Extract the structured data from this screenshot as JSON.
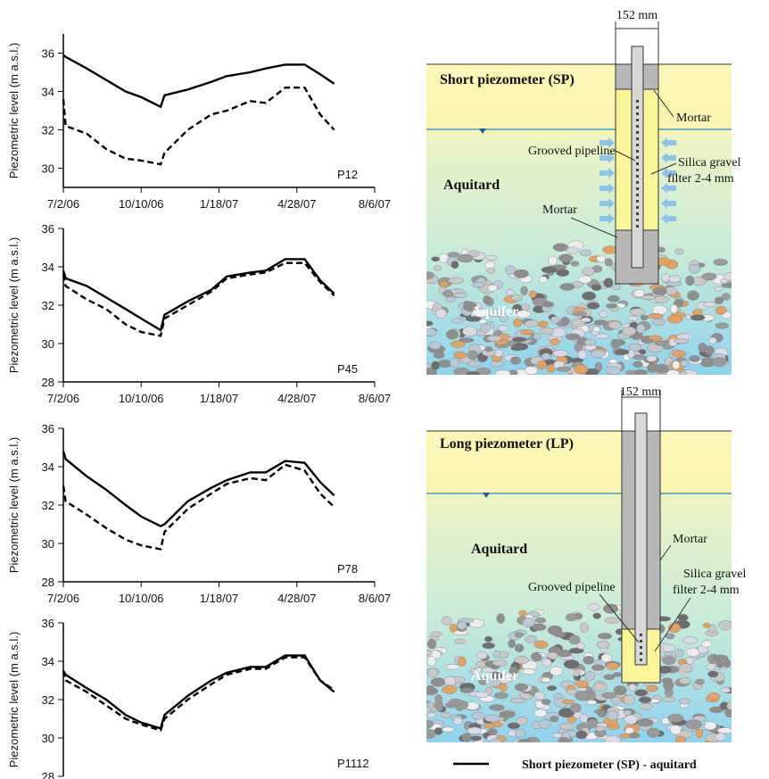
{
  "chart_data": [
    {
      "type": "line",
      "label": "P12",
      "ylabel": "Piezometric level (m a.s.l.)",
      "x": [
        "7/2/06",
        "7/5/06",
        "8/1/06",
        "8/26/06",
        "9/20/06",
        "10/10/06",
        "11/4/06",
        "11/9/06",
        "12/9/06",
        "1/8/07",
        "1/28/07",
        "2/27/07",
        "3/19/07",
        "4/13/07",
        "5/8/07",
        "5/28/07",
        "6/15/07"
      ],
      "series": [
        {
          "color": "#000000",
          "style": "solid",
          "values": [
            35.9,
            35.8,
            35.2,
            34.6,
            34.0,
            33.7,
            33.2,
            33.8,
            34.1,
            34.5,
            34.8,
            35.0,
            35.2,
            35.4,
            35.4,
            34.9,
            34.4
          ]
        },
        {
          "color": "#000000",
          "style": "dashed",
          "values": [
            33.6,
            32.2,
            31.8,
            31.0,
            30.5,
            30.4,
            30.2,
            30.8,
            32.0,
            32.8,
            33.0,
            33.5,
            33.4,
            34.2,
            34.2,
            32.8,
            32.0
          ]
        }
      ],
      "xlim": [
        "7/2/06",
        "8/6/07"
      ],
      "xticks": [
        "7/2/06",
        "10/10/06",
        "1/18/07",
        "4/28/07",
        "8/6/07"
      ],
      "ylim": [
        29,
        37
      ],
      "yticks": [
        30,
        32,
        34,
        36
      ]
    },
    {
      "type": "line",
      "label": "P45",
      "ylabel": "Piezometric level (m a.s.l.)",
      "x": [
        "7/2/06",
        "7/5/06",
        "8/1/06",
        "8/26/06",
        "9/20/06",
        "10/10/06",
        "11/4/06",
        "11/9/06",
        "12/9/06",
        "1/8/07",
        "1/28/07",
        "2/27/07",
        "3/19/07",
        "4/13/07",
        "5/8/07",
        "5/28/07",
        "6/15/07"
      ],
      "series": [
        {
          "color": "#000000",
          "style": "solid",
          "values": [
            33.8,
            33.4,
            33.0,
            32.4,
            31.8,
            31.3,
            30.7,
            31.5,
            32.2,
            32.8,
            33.5,
            33.7,
            33.8,
            34.4,
            34.4,
            33.3,
            32.6
          ]
        },
        {
          "color": "#000000",
          "style": "dashed",
          "values": [
            33.6,
            33.0,
            32.3,
            31.8,
            31.0,
            30.6,
            30.4,
            31.3,
            32.0,
            32.7,
            33.4,
            33.6,
            33.7,
            34.2,
            34.2,
            33.2,
            32.5
          ]
        }
      ],
      "xlim": [
        "7/2/06",
        "8/6/07"
      ],
      "xticks": [
        "7/2/06",
        "10/10/06",
        "1/18/07",
        "4/28/07",
        "8/6/07"
      ],
      "ylim": [
        28,
        36
      ],
      "yticks": [
        28,
        30,
        32,
        34,
        36
      ]
    },
    {
      "type": "line",
      "label": "P78",
      "ylabel": "Piezometric level (m a.s.l.)",
      "x": [
        "7/2/06",
        "7/5/06",
        "8/1/06",
        "8/26/06",
        "9/20/06",
        "10/10/06",
        "11/4/06",
        "11/9/06",
        "12/9/06",
        "1/8/07",
        "1/28/07",
        "2/27/07",
        "3/19/07",
        "4/13/07",
        "5/8/07",
        "5/28/07",
        "6/15/07"
      ],
      "series": [
        {
          "color": "#000000",
          "style": "solid",
          "values": [
            34.8,
            34.4,
            33.5,
            32.8,
            32.0,
            31.4,
            30.9,
            31.0,
            32.2,
            32.9,
            33.3,
            33.7,
            33.7,
            34.3,
            34.2,
            33.2,
            32.5
          ]
        },
        {
          "color": "#000000",
          "style": "dashed",
          "values": [
            33.0,
            32.2,
            31.5,
            30.8,
            30.2,
            29.9,
            29.7,
            30.6,
            31.8,
            32.6,
            33.1,
            33.4,
            33.3,
            34.1,
            33.8,
            32.6,
            31.9
          ]
        }
      ],
      "xlim": [
        "7/2/06",
        "8/6/07"
      ],
      "xticks": [
        "7/2/06",
        "10/10/06",
        "1/18/07",
        "4/28/07",
        "8/6/07"
      ],
      "ylim": [
        28,
        36
      ],
      "yticks": [
        28,
        30,
        32,
        34,
        36
      ]
    },
    {
      "type": "line",
      "label": "P1112",
      "ylabel": "Piezometric level (m a.s.l.)",
      "x": [
        "7/2/06",
        "7/5/06",
        "8/1/06",
        "8/26/06",
        "9/20/06",
        "10/10/06",
        "11/4/06",
        "11/9/06",
        "12/9/06",
        "1/8/07",
        "1/28/07",
        "2/27/07",
        "3/19/07",
        "4/13/07",
        "5/8/07",
        "5/28/07",
        "6/15/07"
      ],
      "series": [
        {
          "color": "#000000",
          "style": "solid",
          "values": [
            33.5,
            33.3,
            32.6,
            32.0,
            31.2,
            30.8,
            30.5,
            31.2,
            32.2,
            33.0,
            33.4,
            33.7,
            33.7,
            34.3,
            34.3,
            33.0,
            32.4
          ]
        },
        {
          "color": "#000000",
          "style": "dashed",
          "values": [
            33.5,
            33.0,
            32.4,
            31.7,
            31.0,
            30.7,
            30.4,
            31.0,
            32.0,
            32.8,
            33.3,
            33.6,
            33.6,
            34.2,
            34.2,
            33.0,
            32.5
          ]
        }
      ],
      "xlim": [
        "7/2/06",
        "8/6/07"
      ],
      "ylim": [
        28,
        36
      ],
      "yticks": [
        28,
        30,
        32,
        34,
        36
      ]
    }
  ],
  "diagrams": [
    {
      "width": "152 mm",
      "title": "Short piezometer (SP)",
      "aquitard": "Aquitard",
      "aquifer": "Aquifer",
      "mortar_top": "Mortar",
      "mortar_bottom": "Mortar",
      "pipeline": "Grooved pipeline",
      "filter": [
        "Silica gravel",
        "filter 2-4 mm"
      ]
    },
    {
      "width": "152 mm",
      "title": "Long piezometer (LP)",
      "aquitard": "Aquitard",
      "aquifer": "Aquifer",
      "mortar": "Mortar",
      "pipeline": "Grooved pipeline",
      "filter": [
        "Silica gravel",
        "filter 2-4 mm"
      ]
    }
  ],
  "legend": "Short piezometer (SP) - aquitard"
}
